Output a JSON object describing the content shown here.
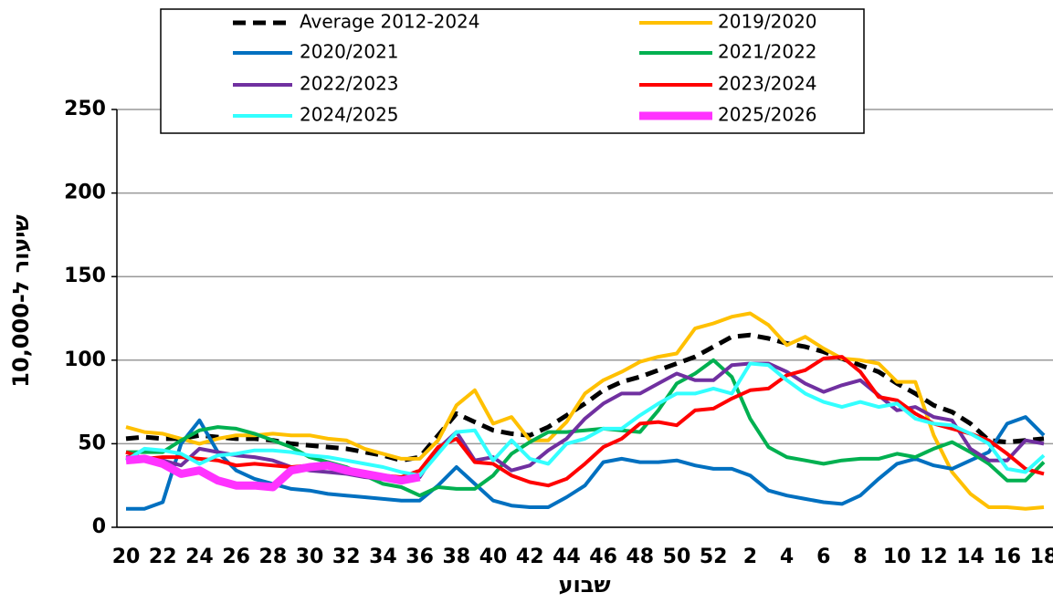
{
  "chart_data": {
    "type": "line",
    "x_label": "שבוע",
    "y_label": "שיעור ל-10,000",
    "categories": [
      "20",
      null,
      "22",
      null,
      "24",
      null,
      "26",
      null,
      "28",
      null,
      "30",
      null,
      "32",
      null,
      "34",
      null,
      "36",
      null,
      "38",
      null,
      "40",
      null,
      "42",
      null,
      "44",
      null,
      "46",
      null,
      "48",
      null,
      "50",
      null,
      "52",
      null,
      "2",
      null,
      "4",
      null,
      "6",
      null,
      "8",
      null,
      "10",
      null,
      "12",
      null,
      "14",
      null,
      "16",
      null,
      "18"
    ],
    "ylim": [
      0,
      250
    ],
    "yticks": [
      0,
      50,
      100,
      150,
      200,
      250
    ],
    "grid": true,
    "legend": "top",
    "series": [
      {
        "name": "Average 2012-2024",
        "color": "#000000",
        "line_style": "dashed",
        "values": [
          53,
          54,
          53,
          53,
          55,
          54,
          53,
          53,
          52,
          50,
          49,
          48,
          47,
          45,
          43,
          40,
          42,
          55,
          68,
          63,
          58,
          56,
          55,
          60,
          67,
          74,
          82,
          87,
          90,
          94,
          98,
          102,
          108,
          114,
          115,
          113,
          110,
          108,
          105,
          101,
          97,
          93,
          86,
          80,
          73,
          69,
          62,
          52,
          51,
          52,
          53
        ]
      },
      {
        "name": "2019/2020",
        "color": "#ffc000",
        "values": [
          60,
          57,
          56,
          53,
          50,
          53,
          55,
          55,
          56,
          55,
          55,
          53,
          52,
          47,
          44,
          41,
          41,
          52,
          73,
          82,
          62,
          66,
          52,
          52,
          63,
          80,
          88,
          93,
          99,
          102,
          104,
          119,
          122,
          126,
          128,
          121,
          109,
          114,
          107,
          101,
          100,
          98,
          87,
          87,
          55,
          33,
          20,
          12,
          12,
          11,
          12
        ]
      },
      {
        "name": "2020/2021",
        "color": "#0070c0",
        "values": [
          11,
          11,
          15,
          50,
          64,
          45,
          34,
          29,
          26,
          23,
          22,
          20,
          19,
          18,
          17,
          16,
          16,
          25,
          36,
          26,
          16,
          13,
          12,
          12,
          18,
          25,
          39,
          41,
          39,
          39,
          40,
          37,
          35,
          35,
          31,
          22,
          19,
          17,
          15,
          14,
          19,
          29,
          38,
          41,
          37,
          35,
          40,
          45,
          62,
          66,
          55
        ]
      },
      {
        "name": "2021/2022",
        "color": "#00b050",
        "values": [
          45,
          45,
          45,
          52,
          58,
          60,
          59,
          56,
          52,
          48,
          42,
          39,
          36,
          31,
          26,
          24,
          19,
          24,
          23,
          23,
          31,
          44,
          51,
          57,
          57,
          58,
          59,
          58,
          57,
          70,
          86,
          92,
          100,
          90,
          65,
          48,
          42,
          40,
          38,
          40,
          41,
          41,
          44,
          42,
          47,
          51,
          45,
          38,
          28,
          28,
          39
        ]
      },
      {
        "name": "2022/2023",
        "color": "#7030a0",
        "values": [
          42,
          42,
          40,
          37,
          47,
          45,
          43,
          42,
          40,
          36,
          34,
          33,
          32,
          30,
          29,
          28,
          30,
          47,
          57,
          40,
          42,
          34,
          37,
          46,
          53,
          65,
          74,
          80,
          80,
          86,
          92,
          88,
          88,
          97,
          98,
          98,
          93,
          86,
          81,
          85,
          88,
          79,
          70,
          72,
          66,
          64,
          47,
          40,
          40,
          52,
          50
        ]
      },
      {
        "name": "2023/2024",
        "color": "#ff0000",
        "values": [
          45,
          41,
          42,
          42,
          41,
          40,
          37,
          38,
          37,
          36,
          37,
          38,
          35,
          33,
          31,
          30,
          34,
          48,
          53,
          39,
          38,
          31,
          27,
          25,
          29,
          38,
          48,
          53,
          62,
          63,
          61,
          70,
          71,
          77,
          82,
          83,
          91,
          94,
          101,
          102,
          93,
          78,
          76,
          68,
          62,
          59,
          56,
          52,
          44,
          35,
          32
        ]
      },
      {
        "name": "2024/2025",
        "color": "#33ffff",
        "values": [
          40,
          47,
          46,
          44,
          38,
          43,
          44,
          46,
          46,
          45,
          43,
          42,
          40,
          38,
          36,
          33,
          31,
          44,
          57,
          58,
          40,
          52,
          41,
          38,
          50,
          53,
          59,
          59,
          67,
          74,
          80,
          80,
          83,
          80,
          98,
          97,
          88,
          80,
          75,
          72,
          75,
          72,
          74,
          65,
          62,
          61,
          56,
          50,
          35,
          33,
          43
        ]
      },
      {
        "name": "2025/2026",
        "color": "#ff33ff",
        "line_style": "thick",
        "values": [
          40,
          41,
          38,
          32,
          34,
          28,
          25,
          25,
          24,
          34,
          36,
          37,
          34,
          32,
          30,
          28,
          30,
          null,
          null,
          null,
          null,
          null,
          null,
          null,
          null,
          null,
          null,
          null,
          null,
          null,
          null,
          null,
          null,
          null,
          null,
          null,
          null,
          null,
          null,
          null,
          null,
          null,
          null,
          null,
          null,
          null,
          null,
          null,
          null,
          null,
          null
        ]
      }
    ]
  }
}
